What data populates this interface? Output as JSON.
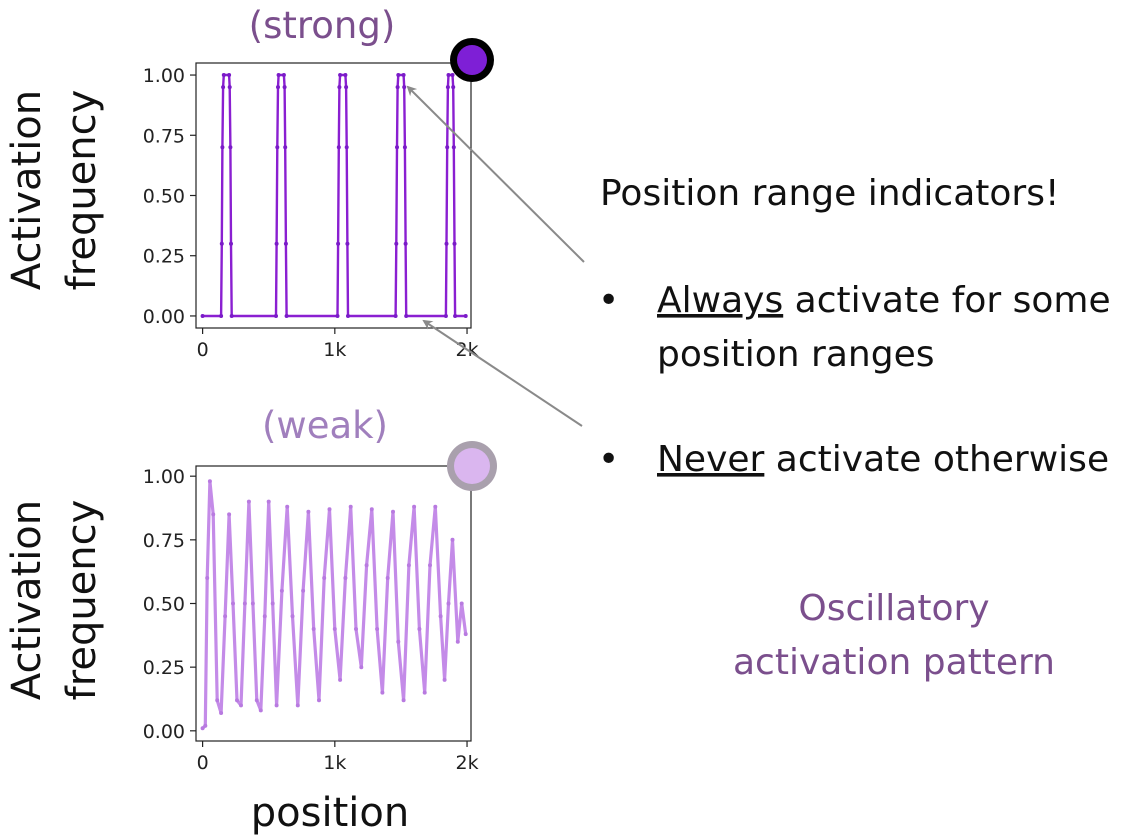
{
  "chart_data": [
    {
      "type": "line",
      "title": "(strong)",
      "title_color": "#7b4f8d",
      "line_color": "#8a1fd1",
      "marker_color": "#7a1bc8",
      "xlabel": "",
      "ylabel": "Activation\nfrequency",
      "ylabel_lines": [
        "Activation",
        "frequency"
      ],
      "xlim": [
        -50,
        2030
      ],
      "ylim": [
        -0.05,
        1.05
      ],
      "xticks": [
        0,
        1000,
        2000
      ],
      "xtick_labels": [
        "0",
        "1k",
        "2k"
      ],
      "yticks": [
        0.0,
        0.25,
        0.5,
        0.75,
        1.0
      ],
      "ytick_labels": [
        "0.00",
        "0.25",
        "0.50",
        "0.75",
        "1.00"
      ],
      "series": [
        {
          "name": "strong",
          "x": [
            0,
            140,
            145,
            150,
            155,
            160,
            200,
            205,
            210,
            215,
            220,
            555,
            560,
            565,
            570,
            575,
            615,
            620,
            625,
            630,
            635,
            1020,
            1025,
            1030,
            1035,
            1040,
            1080,
            1085,
            1090,
            1095,
            1100,
            1460,
            1465,
            1470,
            1475,
            1480,
            1520,
            1525,
            1530,
            1535,
            1540,
            1840,
            1845,
            1850,
            1855,
            1860,
            1890,
            1895,
            1900,
            1905,
            1910,
            1990
          ],
          "y": [
            0,
            0,
            0.3,
            0.7,
            0.95,
            1,
            1,
            0.95,
            0.7,
            0.3,
            0,
            0,
            0.3,
            0.7,
            0.95,
            1,
            1,
            0.95,
            0.7,
            0.3,
            0,
            0,
            0.3,
            0.7,
            0.95,
            1,
            1,
            0.95,
            0.7,
            0.3,
            0,
            0,
            0.3,
            0.7,
            0.95,
            1,
            1,
            0.95,
            0.7,
            0.3,
            0,
            0,
            0.3,
            0.7,
            0.95,
            1,
            1,
            0.95,
            0.7,
            0.3,
            0,
            0
          ]
        }
      ]
    },
    {
      "type": "line",
      "title": "(weak)",
      "title_color": "#a07fbd",
      "line_color": "#c48be8",
      "marker_color": "#b87ae0",
      "xlabel": "position",
      "ylabel": "Activation\nfrequency",
      "ylabel_lines": [
        "Activation",
        "frequency"
      ],
      "xlim": [
        -50,
        2030
      ],
      "ylim": [
        -0.04,
        1.04
      ],
      "xticks": [
        0,
        1000,
        2000
      ],
      "xtick_labels": [
        "0",
        "1k",
        "2k"
      ],
      "yticks": [
        0.0,
        0.25,
        0.5,
        0.75,
        1.0
      ],
      "ytick_labels": [
        "0.00",
        "0.25",
        "0.50",
        "0.75",
        "1.00"
      ],
      "series": [
        {
          "name": "weak",
          "x": [
            0,
            20,
            35,
            55,
            80,
            110,
            140,
            170,
            200,
            230,
            260,
            290,
            320,
            350,
            380,
            410,
            440,
            470,
            500,
            530,
            560,
            600,
            640,
            680,
            720,
            760,
            800,
            840,
            880,
            920,
            960,
            1000,
            1040,
            1080,
            1120,
            1160,
            1200,
            1240,
            1280,
            1320,
            1360,
            1400,
            1440,
            1480,
            1520,
            1560,
            1600,
            1640,
            1680,
            1720,
            1760,
            1800,
            1830,
            1860,
            1890,
            1930,
            1960,
            1990
          ],
          "y": [
            0.01,
            0.02,
            0.6,
            0.98,
            0.85,
            0.12,
            0.07,
            0.45,
            0.85,
            0.5,
            0.12,
            0.1,
            0.5,
            0.9,
            0.5,
            0.12,
            0.08,
            0.45,
            0.9,
            0.5,
            0.1,
            0.55,
            0.88,
            0.45,
            0.1,
            0.55,
            0.86,
            0.4,
            0.12,
            0.6,
            0.87,
            0.4,
            0.2,
            0.6,
            0.88,
            0.4,
            0.25,
            0.65,
            0.87,
            0.4,
            0.15,
            0.6,
            0.86,
            0.35,
            0.12,
            0.65,
            0.88,
            0.4,
            0.15,
            0.65,
            0.88,
            0.45,
            0.2,
            0.5,
            0.75,
            0.35,
            0.5,
            0.38
          ]
        }
      ]
    }
  ],
  "annotations": {
    "heading": "Position range indicators!",
    "bullets": [
      {
        "marker": "•",
        "keyword": "Always",
        "rest": " activate for some",
        "continuation": "position ranges"
      },
      {
        "marker": "•",
        "keyword": "Never",
        "rest": " activate otherwise",
        "continuation": ""
      }
    ],
    "oscillatory_line1": "Oscillatory",
    "oscillatory_line2": "activation pattern"
  },
  "badges": {
    "strong_color": "#7e1fd6",
    "weak_color": "#dab6ef"
  }
}
